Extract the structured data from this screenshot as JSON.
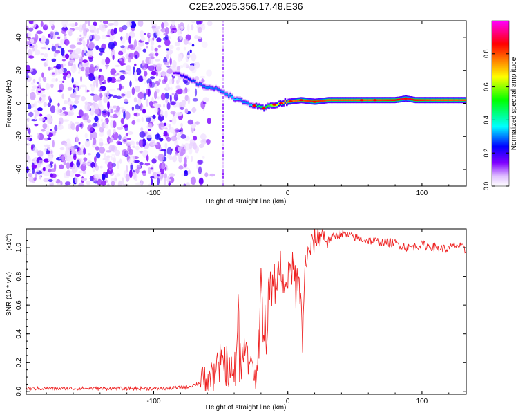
{
  "title": "C2E2.2025.356.17.48.E36",
  "chart_data": [
    {
      "type": "heatmap",
      "name": "spectrogram",
      "xlabel": "Height of straight line (km)",
      "ylabel": "Frequency (Hz)",
      "xlim": [
        -195,
        133
      ],
      "ylim": [
        -50,
        50
      ],
      "xticks": [
        -100,
        0,
        100
      ],
      "yticks": [
        -40,
        -20,
        0,
        20,
        40
      ],
      "colorbar": {
        "label": "Normalized spectral amplitude",
        "range": [
          0,
          1
        ],
        "ticks": [
          "0.0",
          "0.2",
          "0.4",
          "0.6",
          "0.8"
        ],
        "colors": [
          "#ffffff",
          "#8000ff",
          "#0000ff",
          "#00ffff",
          "#00ff00",
          "#ffff00",
          "#ff8000",
          "#ff0000",
          "#ff00ff"
        ]
      },
      "noise_region_x": [
        -195,
        -65
      ],
      "impulse_line_x": -48,
      "ridge": {
        "x": [
          -85,
          -75,
          -65,
          -55,
          -48,
          -40,
          -30,
          -23,
          -18,
          -12,
          -5,
          0,
          10,
          20,
          30,
          40,
          60,
          80,
          88,
          95,
          110,
          133
        ],
        "freq": [
          19,
          15,
          11,
          9,
          7,
          3,
          0,
          -2,
          -3,
          -1,
          0,
          1,
          2,
          1,
          2,
          2,
          2,
          2,
          3,
          2,
          2,
          2
        ],
        "amplitude": [
          0.15,
          0.25,
          0.3,
          0.3,
          0.3,
          0.35,
          0.3,
          0.45,
          0.5,
          0.6,
          0.7,
          0.75,
          0.8,
          0.85,
          0.8,
          0.8,
          0.8,
          0.85,
          0.9,
          0.85,
          0.8,
          0.8
        ]
      }
    },
    {
      "type": "line",
      "name": "snr",
      "xlabel": "Height of straight line (km)",
      "ylabel": "SNR (10 * v/v)",
      "multiplier_label": "(x10",
      "multiplier_exponent": "4",
      "xlim": [
        -195,
        133
      ],
      "ylim": [
        -0.02,
        1.13
      ],
      "xticks": [
        -100,
        0,
        100
      ],
      "yticks": [
        0.0,
        0.2,
        0.4,
        0.6,
        0.8,
        1.0
      ],
      "color": "#ee2222",
      "x": [
        -195,
        -170,
        -150,
        -120,
        -90,
        -75,
        -65,
        -58,
        -52,
        -47,
        -43,
        -40,
        -37,
        -35,
        -33,
        -31,
        -29,
        -27,
        -25,
        -23,
        -21,
        -20,
        -19,
        -18,
        -17,
        -16,
        -14,
        -12,
        -10,
        -8,
        -6,
        -4,
        -2,
        0,
        2,
        4,
        6,
        8,
        10,
        11,
        12,
        13,
        15,
        17,
        20,
        25,
        30,
        35,
        40,
        50,
        60,
        70,
        80,
        90,
        100,
        110,
        120,
        125,
        130,
        133
      ],
      "y": [
        0.02,
        0.02,
        0.02,
        0.02,
        0.02,
        0.03,
        0.06,
        0.1,
        0.15,
        0.22,
        0.12,
        0.1,
        0.55,
        0.2,
        0.3,
        0.35,
        0.15,
        0.2,
        0.05,
        0.1,
        0.45,
        1.02,
        0.55,
        0.35,
        0.5,
        0.2,
        0.8,
        0.7,
        0.85,
        0.8,
        0.9,
        0.7,
        0.82,
        0.8,
        0.85,
        0.9,
        0.8,
        0.75,
        0.6,
        0.28,
        0.7,
        0.9,
        0.95,
        1.0,
        1.05,
        1.1,
        1.05,
        1.08,
        1.1,
        1.07,
        1.05,
        1.04,
        1.03,
        1.0,
        1.02,
        1.0,
        0.99,
        1.02,
        1.0,
        0.97
      ]
    }
  ]
}
